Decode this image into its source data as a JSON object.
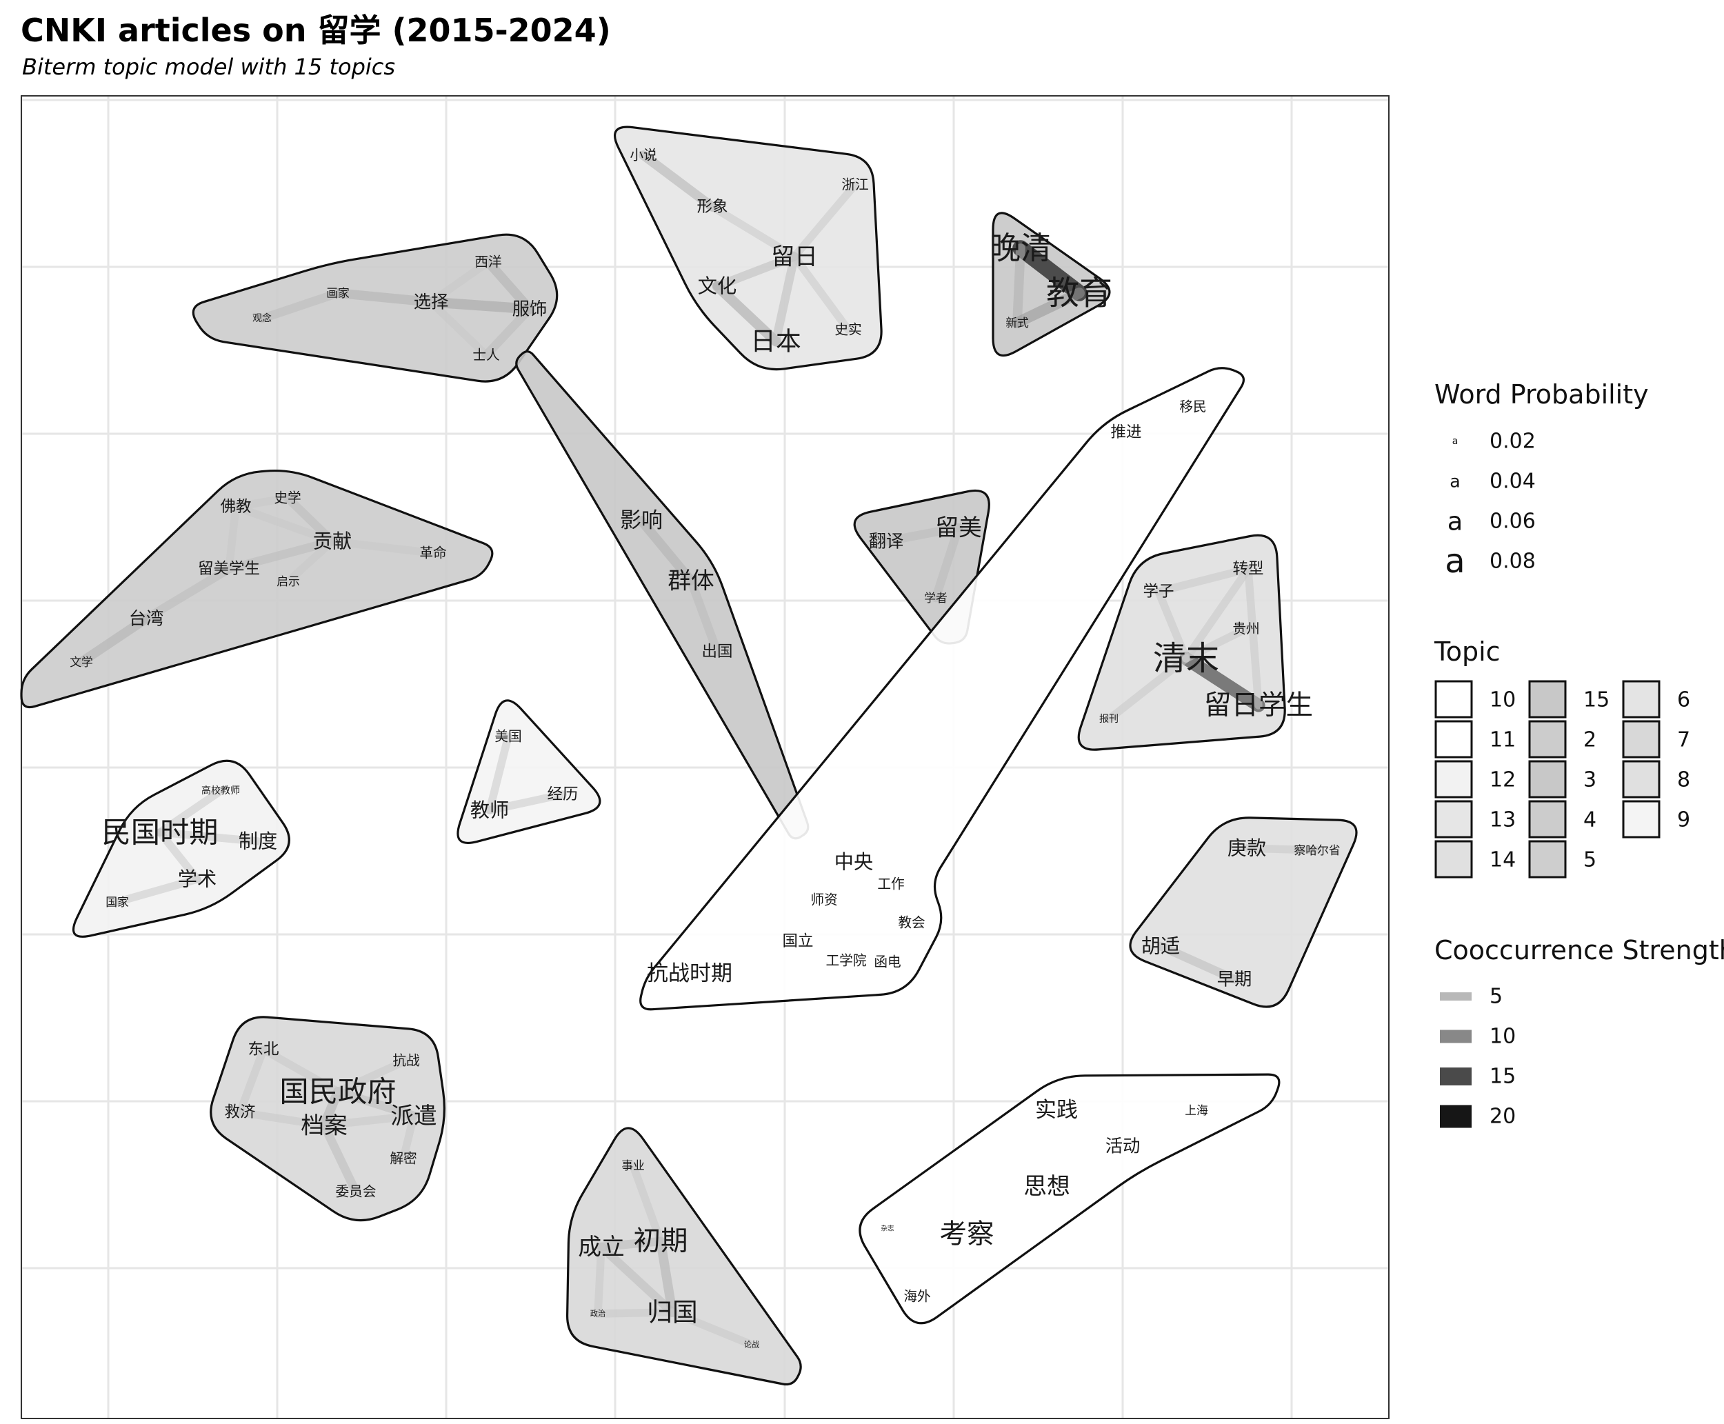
{
  "chart_data": {
    "type": "network-topic-map",
    "title": "CNKI articles on 留学 (2015-2024)",
    "subtitle": "Biterm topic model with 15 topics",
    "grid": true,
    "legends": {
      "word_probability": {
        "title": "Word Probability",
        "glyph": "a",
        "values": [
          0.02,
          0.04,
          0.06,
          0.08
        ],
        "labels": [
          "0.02",
          "0.04",
          "0.06",
          "0.08"
        ]
      },
      "topic": {
        "title": "Topic",
        "entries": [
          {
            "label": "10",
            "fill": "#ffffff"
          },
          {
            "label": "11",
            "fill": "#ffffff"
          },
          {
            "label": "12",
            "fill": "#f2f2f2"
          },
          {
            "label": "13",
            "fill": "#e6e6e6"
          },
          {
            "label": "14",
            "fill": "#e0e0e0"
          },
          {
            "label": "15",
            "fill": "#c8c8c8"
          },
          {
            "label": "2",
            "fill": "#cccccc"
          },
          {
            "label": "3",
            "fill": "#c8c8c8"
          },
          {
            "label": "4",
            "fill": "#cccccc"
          },
          {
            "label": "5",
            "fill": "#cecece"
          },
          {
            "label": "6",
            "fill": "#e4e4e4"
          },
          {
            "label": "7",
            "fill": "#d8d8d8"
          },
          {
            "label": "8",
            "fill": "#e0e0e0"
          },
          {
            "label": "9",
            "fill": "#f4f4f4"
          }
        ]
      },
      "cooccurrence": {
        "title": "Cooccurrence Strength",
        "entries": [
          {
            "label": "5",
            "color": "#b8b8b8"
          },
          {
            "label": "10",
            "color": "#888888"
          },
          {
            "label": "15",
            "color": "#4a4a4a"
          },
          {
            "label": "20",
            "color": "#161616"
          }
        ]
      }
    },
    "topics": [
      {
        "id": "t-fashion",
        "fill": "#cccccc",
        "words": [
          {
            "w": "观念",
            "p": 0.02
          },
          {
            "w": "画家",
            "p": 0.025
          },
          {
            "w": "选择",
            "p": 0.04
          },
          {
            "w": "西洋",
            "p": 0.03
          },
          {
            "w": "服饰",
            "p": 0.04
          },
          {
            "w": "士人",
            "p": 0.03
          }
        ],
        "edges": [
          [
            "观念",
            "画家",
            6
          ],
          [
            "画家",
            "选择",
            7
          ],
          [
            "选择",
            "服饰",
            8
          ],
          [
            "西洋",
            "服饰",
            7
          ],
          [
            "选择",
            "西洋",
            5
          ],
          [
            "选择",
            "士人",
            5
          ],
          [
            "服饰",
            "士人",
            6
          ]
        ]
      },
      {
        "id": "t-japan",
        "fill": "#e6e6e6",
        "words": [
          {
            "w": "小说",
            "p": 0.03
          },
          {
            "w": "形象",
            "p": 0.035
          },
          {
            "w": "浙江",
            "p": 0.03
          },
          {
            "w": "留日",
            "p": 0.055
          },
          {
            "w": "文化",
            "p": 0.045
          },
          {
            "w": "日本",
            "p": 0.06
          },
          {
            "w": "史实",
            "p": 0.03
          }
        ],
        "edges": [
          [
            "小说",
            "形象",
            7
          ],
          [
            "形象",
            "留日",
            5
          ],
          [
            "文化",
            "留日",
            6
          ],
          [
            "文化",
            "日本",
            8
          ],
          [
            "日本",
            "留日",
            6
          ],
          [
            "留日",
            "浙江",
            5
          ],
          [
            "留日",
            "史实",
            5
          ]
        ]
      },
      {
        "id": "t-lateqing-edu",
        "fill": "#c8c8c8",
        "words": [
          {
            "w": "晚清",
            "p": 0.075
          },
          {
            "w": "教育",
            "p": 0.08
          },
          {
            "w": "新式",
            "p": 0.025
          }
        ],
        "edges": [
          [
            "晚清",
            "教育",
            16
          ],
          [
            "晚清",
            "新式",
            7
          ],
          [
            "新式",
            "教育",
            9
          ]
        ]
      },
      {
        "id": "t-contrib",
        "fill": "#cccccc",
        "words": [
          {
            "w": "佛教",
            "p": 0.035
          },
          {
            "w": "史学",
            "p": 0.03
          },
          {
            "w": "贡献",
            "p": 0.045
          },
          {
            "w": "革命",
            "p": 0.03
          },
          {
            "w": "留美学生",
            "p": 0.035
          },
          {
            "w": "启示",
            "p": 0.025
          },
          {
            "w": "台湾",
            "p": 0.04
          },
          {
            "w": "文学",
            "p": 0.025
          }
        ],
        "edges": [
          [
            "佛教",
            "史学",
            5
          ],
          [
            "佛教",
            "贡献",
            5
          ],
          [
            "史学",
            "贡献",
            6
          ],
          [
            "贡献",
            "革命",
            5
          ],
          [
            "留美学生",
            "贡献",
            6
          ],
          [
            "留美学生",
            "台湾",
            6
          ],
          [
            "台湾",
            "文学",
            7
          ],
          [
            "佛教",
            "留美学生",
            5
          ],
          [
            "启示",
            "贡献",
            5
          ]
        ]
      },
      {
        "id": "t-group",
        "fill": "#c8c8c8",
        "words": [
          {
            "w": "影响",
            "p": 0.05
          },
          {
            "w": "群体",
            "p": 0.055
          },
          {
            "w": "出国",
            "p": 0.035
          }
        ],
        "edges": [
          [
            "影响",
            "群体",
            7
          ],
          [
            "群体",
            "出国",
            6
          ]
        ]
      },
      {
        "id": "t-usa-trans",
        "fill": "#c8c8c8",
        "words": [
          {
            "w": "翻译",
            "p": 0.04
          },
          {
            "w": "留美",
            "p": 0.055
          },
          {
            "w": "学者",
            "p": 0.025
          }
        ],
        "edges": [
          [
            "翻译",
            "留美",
            6
          ],
          [
            "留美",
            "学者",
            6
          ]
        ]
      },
      {
        "id": "t-migration",
        "fill": "#ffffff",
        "words": [
          {
            "w": "移民",
            "p": 0.03
          },
          {
            "w": "推进",
            "p": 0.035
          },
          {
            "w": "中央",
            "p": 0.045
          },
          {
            "w": "工作",
            "p": 0.03
          },
          {
            "w": "师资",
            "p": 0.03
          },
          {
            "w": "教会",
            "p": 0.03
          },
          {
            "w": "国立",
            "p": 0.035
          },
          {
            "w": "工学院",
            "p": 0.03
          },
          {
            "w": "函电",
            "p": 0.03
          },
          {
            "w": "抗战时期",
            "p": 0.05
          }
        ],
        "edges": []
      },
      {
        "id": "t-lateqing-students",
        "fill": "#e0e0e0",
        "words": [
          {
            "w": "学子",
            "p": 0.035
          },
          {
            "w": "转型",
            "p": 0.035
          },
          {
            "w": "贵州",
            "p": 0.03
          },
          {
            "w": "清末",
            "p": 0.08
          },
          {
            "w": "留日学生",
            "p": 0.065
          },
          {
            "w": "报刊",
            "p": 0.02
          }
        ],
        "edges": [
          [
            "清末",
            "留日学生",
            12
          ],
          [
            "学子",
            "清末",
            5
          ],
          [
            "转型",
            "清末",
            5
          ],
          [
            "贵州",
            "清末",
            5
          ],
          [
            "报刊",
            "清末",
            5
          ],
          [
            "学子",
            "转型",
            5
          ],
          [
            "转型",
            "留日学生",
            5
          ]
        ]
      },
      {
        "id": "t-republic",
        "fill": "#f2f2f2",
        "words": [
          {
            "w": "高校教师",
            "p": 0.02
          },
          {
            "w": "民国时期",
            "p": 0.07
          },
          {
            "w": "制度",
            "p": 0.045
          },
          {
            "w": "学术",
            "p": 0.045
          },
          {
            "w": "国家",
            "p": 0.025
          }
        ],
        "edges": [
          [
            "民国时期",
            "制度",
            5
          ],
          [
            "民国时期",
            "学术",
            5
          ],
          [
            "学术",
            "国家",
            5
          ],
          [
            "高校教师",
            "民国时期",
            5
          ]
        ]
      },
      {
        "id": "t-teacher",
        "fill": "#f4f4f4",
        "words": [
          {
            "w": "美国",
            "p": 0.03
          },
          {
            "w": "教师",
            "p": 0.045
          },
          {
            "w": "经历",
            "p": 0.035
          }
        ],
        "edges": [
          [
            "美国",
            "教师",
            5
          ],
          [
            "教师",
            "经历",
            5
          ]
        ]
      },
      {
        "id": "t-boxer",
        "fill": "#e0e0e0",
        "words": [
          {
            "w": "庚款",
            "p": 0.045
          },
          {
            "w": "察哈尔省",
            "p": 0.025
          },
          {
            "w": "胡适",
            "p": 0.045
          },
          {
            "w": "早期",
            "p": 0.04
          }
        ],
        "edges": [
          [
            "庚款",
            "察哈尔省",
            5
          ],
          [
            "胡适",
            "早期",
            6
          ]
        ]
      },
      {
        "id": "t-nationalist",
        "fill": "#d8d8d8",
        "words": [
          {
            "w": "东北",
            "p": 0.035
          },
          {
            "w": "抗战",
            "p": 0.03
          },
          {
            "w": "国民政府",
            "p": 0.07
          },
          {
            "w": "救济",
            "p": 0.035
          },
          {
            "w": "档案",
            "p": 0.055
          },
          {
            "w": "派遣",
            "p": 0.055
          },
          {
            "w": "解密",
            "p": 0.03
          },
          {
            "w": "委员会",
            "p": 0.03
          }
        ],
        "edges": [
          [
            "国民政府",
            "档案",
            7
          ],
          [
            "国民政府",
            "派遣",
            6
          ],
          [
            "国民政府",
            "东北",
            5
          ],
          [
            "国民政府",
            "抗战",
            5
          ],
          [
            "救济",
            "档案",
            5
          ],
          [
            "档案",
            "委员会",
            6
          ],
          [
            "派遣",
            "解密",
            5
          ],
          [
            "档案",
            "派遣",
            5
          ],
          [
            "东北",
            "救济",
            5
          ]
        ]
      },
      {
        "id": "t-return",
        "fill": "#d8d8d8",
        "words": [
          {
            "w": "事业",
            "p": 0.025
          },
          {
            "w": "成立",
            "p": 0.055
          },
          {
            "w": "初期",
            "p": 0.065
          },
          {
            "w": "政治",
            "p": 0.015
          },
          {
            "w": "归国",
            "p": 0.06
          },
          {
            "w": "论战",
            "p": 0.015
          }
        ],
        "edges": [
          [
            "成立",
            "初期",
            6
          ],
          [
            "初期",
            "归国",
            7
          ],
          [
            "成立",
            "归国",
            6
          ],
          [
            "事业",
            "初期",
            5
          ],
          [
            "政治",
            "归国",
            5
          ],
          [
            "归国",
            "论战",
            5
          ],
          [
            "成立",
            "政治",
            5
          ]
        ]
      },
      {
        "id": "t-practice",
        "fill": "#ffffff",
        "words": [
          {
            "w": "实践",
            "p": 0.05
          },
          {
            "w": "上海",
            "p": 0.025
          },
          {
            "w": "活动",
            "p": 0.04
          },
          {
            "w": "思想",
            "p": 0.055
          },
          {
            "w": "杂志",
            "p": 0.012
          },
          {
            "w": "考察",
            "p": 0.065
          },
          {
            "w": "海外",
            "p": 0.03
          }
        ],
        "edges": []
      }
    ]
  }
}
